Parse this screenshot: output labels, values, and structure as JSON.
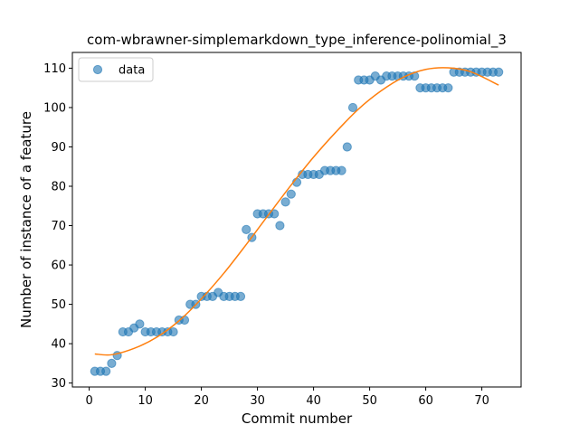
{
  "chart_data": {
    "type": "scatter",
    "title": "com-wbrawner-simplemarkdown_type_inference-polinomial_3",
    "xlabel": "Commit number",
    "ylabel": "Number of instance of a feature",
    "xlim": [
      -3,
      77
    ],
    "ylim": [
      29,
      114
    ],
    "xticks": [
      0,
      10,
      20,
      30,
      40,
      50,
      60,
      70
    ],
    "yticks": [
      30,
      40,
      50,
      60,
      70,
      80,
      90,
      100,
      110
    ],
    "grid": false,
    "legend": {
      "position": "top-left",
      "entries": [
        "data"
      ]
    },
    "series": [
      {
        "name": "data",
        "kind": "scatter",
        "color": "#1f77b4",
        "x": [
          1,
          2,
          3,
          4,
          5,
          6,
          7,
          8,
          9,
          10,
          11,
          12,
          13,
          14,
          15,
          16,
          17,
          18,
          19,
          20,
          21,
          22,
          23,
          24,
          25,
          26,
          27,
          28,
          29,
          30,
          31,
          32,
          33,
          34,
          35,
          36,
          37,
          38,
          39,
          40,
          41,
          42,
          43,
          44,
          45,
          46,
          47,
          48,
          49,
          50,
          51,
          52,
          53,
          54,
          55,
          56,
          57,
          58,
          59,
          60,
          61,
          62,
          63,
          64,
          65,
          66,
          67,
          68,
          69,
          70,
          71,
          72,
          73
        ],
        "y": [
          33,
          33,
          33,
          35,
          37,
          43,
          43,
          44,
          45,
          43,
          43,
          43,
          43,
          43,
          43,
          46,
          46,
          50,
          50,
          52,
          52,
          52,
          53,
          52,
          52,
          52,
          52,
          69,
          67,
          73,
          73,
          73,
          73,
          70,
          76,
          78,
          81,
          83,
          83,
          83,
          83,
          84,
          84,
          84,
          84,
          90,
          100,
          107,
          107,
          107,
          108,
          107,
          108,
          108,
          108,
          108,
          108,
          108,
          105,
          105,
          105,
          105,
          105,
          105,
          109,
          109,
          109,
          109,
          109,
          109,
          109,
          109,
          109
        ]
      },
      {
        "kind": "line",
        "color": "#ff7f0e",
        "x": [
          1,
          4,
          8,
          12,
          16,
          20,
          24,
          28,
          32,
          36,
          40,
          44,
          48,
          52,
          56,
          60,
          64,
          68,
          73
        ],
        "y": [
          37.4,
          37.2,
          38.8,
          41.6,
          45.8,
          51.4,
          57.9,
          65.2,
          72.8,
          80.3,
          87.4,
          93.8,
          99.6,
          104.2,
          107.7,
          109.7,
          110.1,
          109.1,
          105.7
        ]
      }
    ]
  }
}
